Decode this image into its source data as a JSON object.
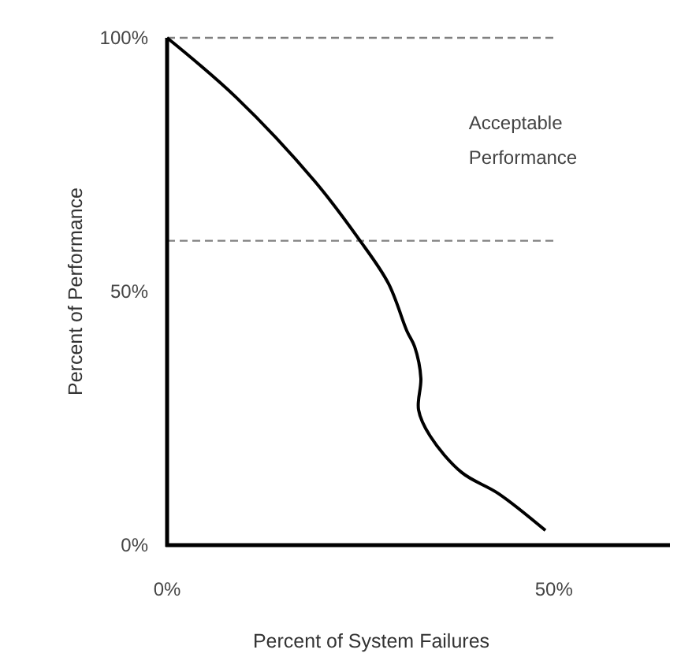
{
  "chart_data": {
    "type": "line",
    "xlabel": "Percent of System Failures",
    "ylabel": "Percent of Performance",
    "x": [
      0,
      8.9,
      19.1,
      24.8,
      28.6,
      31,
      32,
      32.8,
      32.5,
      34,
      38.1,
      42.8,
      48.9
    ],
    "series": [
      {
        "color": "#000000",
        "values": [
          100,
          88.3,
          71.7,
          60.3,
          51.6,
          42.2,
          39.1,
          32.9,
          26.7,
          21.5,
          14.3,
          10.2,
          2.9
        ]
      }
    ],
    "xlim": [
      0,
      65
    ],
    "xticks": [
      {
        "value": 0,
        "label": "0%"
      },
      {
        "value": 50,
        "label": "50%"
      }
    ],
    "ylim": [
      0,
      100
    ],
    "yticks": [
      {
        "value": 0,
        "label": "0%"
      },
      {
        "value": 50,
        "label": "50%"
      },
      {
        "value": 100,
        "label": "100%"
      }
    ],
    "ref_lines": [
      {
        "axis": "y",
        "value": 100,
        "color": "#808080",
        "line_style": "dashed"
      },
      {
        "axis": "y",
        "value": 60,
        "color": "#808080",
        "line_style": "dashed"
      }
    ],
    "annotations": [
      "Acceptable Performance"
    ],
    "grid": false,
    "marker": "none",
    "line_style": "solid"
  }
}
